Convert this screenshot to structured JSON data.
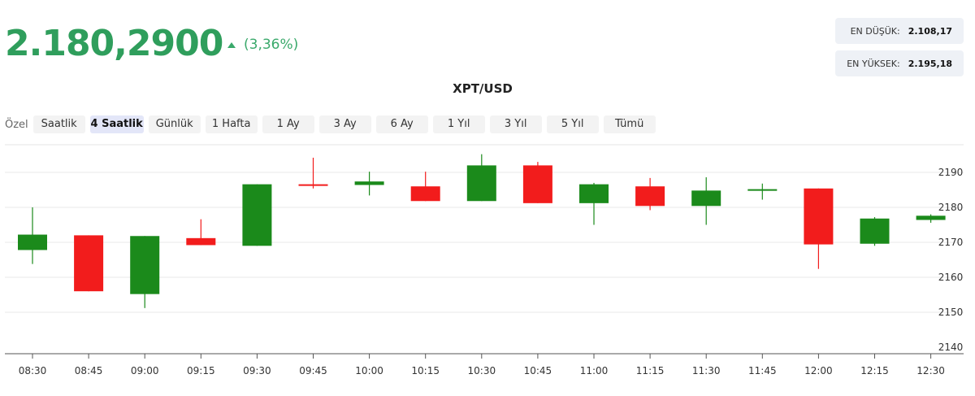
{
  "header": {
    "price": "2.180,2900",
    "change": "(3,36%)",
    "change_icon": "triangle-up-icon",
    "up_color": "#3aa96b",
    "low_label": "EN DÜŞÜK:",
    "low_value": "2.108,17",
    "high_label": "EN YÜKSEK:",
    "high_value": "2.195,18"
  },
  "ranges": {
    "label": "Özel",
    "active": "4 Saatlik",
    "items": [
      "Saatlik",
      "4 Saatlik",
      "Günlük",
      "1 Hafta",
      "1 Ay",
      "3 Ay",
      "6 Ay",
      "1 Yıl",
      "3 Yıl",
      "5 Yıl",
      "Tümü"
    ]
  },
  "chart_data": {
    "type": "candlestick",
    "title": "XPT/USD",
    "x": [
      "08:30",
      "08:45",
      "09:00",
      "09:15",
      "09:30",
      "09:45",
      "10:00",
      "10:15",
      "10:30",
      "10:45",
      "11:00",
      "11:15",
      "11:30",
      "11:45",
      "12:00",
      "12:15",
      "12:30"
    ],
    "open": [
      2167.8,
      2172.0,
      2155.2,
      2171.2,
      2169.0,
      2186.6,
      2186.4,
      2186.0,
      2181.8,
      2192.0,
      2181.2,
      2186.0,
      2180.4,
      2185.2,
      2185.4,
      2169.6,
      2176.4
    ],
    "close": [
      2172.2,
      2156.0,
      2171.8,
      2169.2,
      2186.6,
      2186.2,
      2187.4,
      2181.8,
      2192.0,
      2181.2,
      2186.6,
      2180.4,
      2184.8,
      2185.2,
      2169.4,
      2176.8,
      2177.6
    ],
    "high": [
      2180.0,
      2172.0,
      2171.8,
      2176.6,
      2186.6,
      2194.2,
      2190.2,
      2190.2,
      2195.2,
      2193.0,
      2187.0,
      2188.4,
      2188.6,
      2186.8,
      2185.4,
      2177.2,
      2178.0
    ],
    "low": [
      2163.8,
      2156.0,
      2151.2,
      2169.2,
      2169.0,
      2185.4,
      2183.4,
      2181.8,
      2181.8,
      2181.2,
      2175.0,
      2179.2,
      2175.0,
      2182.2,
      2162.4,
      2169.0,
      2175.6
    ],
    "ylim": [
      2140,
      2200
    ],
    "yticks": [
      2140,
      2150,
      2160,
      2170,
      2180,
      2190
    ],
    "up_color": "#1b8a1b",
    "down_color": "#f21c1c",
    "grid": true
  }
}
